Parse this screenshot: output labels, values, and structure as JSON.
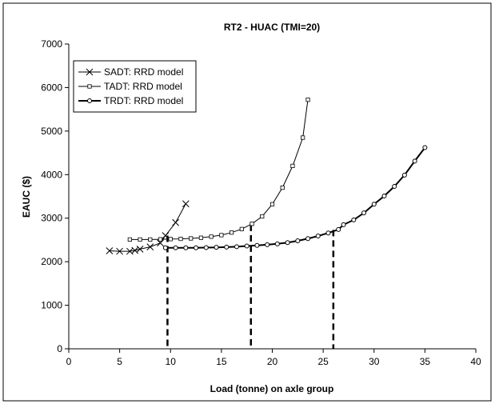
{
  "chart_data": {
    "type": "line",
    "title": "RT2 - HUAC (TMI=20)",
    "xlabel": "Load (tonne) on axle group",
    "ylabel": "EAUC ($)",
    "xlim": [
      0,
      40
    ],
    "ylim": [
      0,
      7000
    ],
    "xticks": [
      0,
      5,
      10,
      15,
      20,
      25,
      30,
      35,
      40
    ],
    "yticks": [
      0,
      1000,
      2000,
      3000,
      4000,
      5000,
      6000,
      7000
    ],
    "grid": false,
    "legend_position": "top-left",
    "series": [
      {
        "name": "SADT: RRD model",
        "marker": "x",
        "line_width": "thin",
        "color": "#000000",
        "x": [
          4,
          5,
          6,
          6.5,
          7,
          8,
          9,
          9.5,
          10.5,
          11.5
        ],
        "y": [
          2250,
          2240,
          2240,
          2260,
          2290,
          2340,
          2430,
          2600,
          2900,
          3330
        ]
      },
      {
        "name": "TADT: RRD model",
        "marker": "square",
        "line_width": "thin",
        "color": "#000000",
        "x": [
          6,
          7,
          8,
          9,
          10,
          11,
          12,
          13,
          14,
          15,
          16,
          17,
          18,
          19,
          20,
          21,
          22,
          23,
          23.5
        ],
        "y": [
          2510,
          2510,
          2510,
          2515,
          2520,
          2525,
          2535,
          2550,
          2575,
          2610,
          2670,
          2750,
          2870,
          3040,
          3320,
          3700,
          4200,
          4850,
          5720
        ]
      },
      {
        "name": "TRDT: RRD model",
        "marker": "circle",
        "line_width": "thick",
        "color": "#000000",
        "x": [
          9.5,
          10.5,
          11.5,
          12.5,
          13.5,
          14.5,
          15.5,
          16.5,
          17.5,
          18.5,
          19.5,
          20.5,
          21.5,
          22.5,
          23.5,
          24.5,
          25.5,
          26.5,
          27,
          28,
          29,
          30,
          31,
          32,
          33,
          34,
          35
        ],
        "y": [
          2320,
          2320,
          2320,
          2320,
          2325,
          2330,
          2335,
          2345,
          2360,
          2375,
          2390,
          2410,
          2440,
          2480,
          2530,
          2590,
          2660,
          2740,
          2850,
          2960,
          3120,
          3320,
          3510,
          3730,
          3990,
          4310,
          4620
        ]
      }
    ],
    "annotations": {
      "dashed_vertical_lines": [
        {
          "x": 9.7,
          "y_top": 2600
        },
        {
          "x": 17.9,
          "y_top": 2850
        },
        {
          "x": 26,
          "y_top": 2730
        }
      ]
    }
  }
}
